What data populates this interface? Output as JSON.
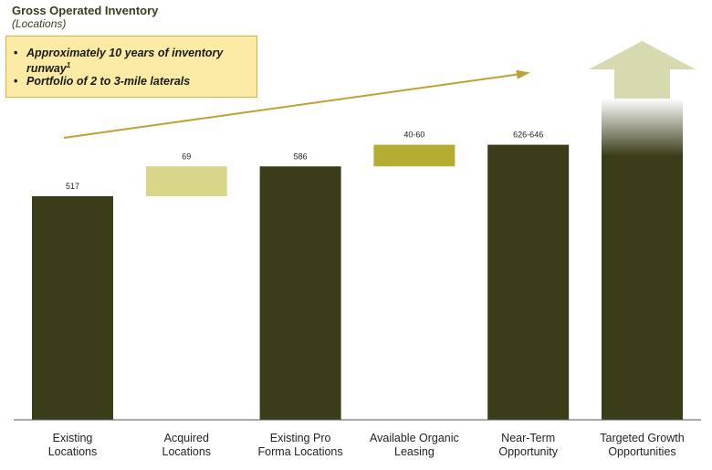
{
  "header": {
    "title": "Gross Operated Inventory",
    "subtitle": "(Locations)"
  },
  "callout": {
    "bullets": [
      {
        "text": "Approximately 10 years of inventory runway",
        "superscript": "1"
      },
      {
        "text": "Portfolio of 2 to 3-mile laterals",
        "superscript": ""
      }
    ]
  },
  "colors": {
    "dark_olive": "#3b3d19",
    "light_olive": "#d9d68a",
    "mid_olive": "#b5ac34",
    "arrow_light": "#d9d9b0",
    "trend_line": "#bfa133",
    "axis": "#555555"
  },
  "chart_data": {
    "type": "bar",
    "subtype": "waterfall",
    "categories": [
      "Existing Locations",
      "Acquired Locations",
      "Existing Pro Forma Locations",
      "Available Organic Leasing",
      "Near-Term Opportunity",
      "Targeted Growth Opportunities"
    ],
    "category_lines": [
      [
        "Existing",
        "Locations"
      ],
      [
        "Acquired",
        "Locations"
      ],
      [
        "Existing Pro",
        "Forma Locations"
      ],
      [
        "Available Organic",
        "Leasing"
      ],
      [
        "Near-Term",
        "Opportunity"
      ],
      [
        "Targeted Growth",
        "Opportunities"
      ]
    ],
    "bars": [
      {
        "kind": "total",
        "start": 0,
        "end": 517,
        "label": "517"
      },
      {
        "kind": "increment",
        "start": 517,
        "end": 586,
        "label": "69"
      },
      {
        "kind": "total",
        "start": 0,
        "end": 586,
        "label": "586"
      },
      {
        "kind": "increment",
        "start": 586,
        "end": 636,
        "label": "40-60"
      },
      {
        "kind": "total",
        "start": 0,
        "end": 636,
        "label": "626-646"
      },
      {
        "kind": "open_ended_growth",
        "start": 0,
        "end": null,
        "label": ""
      }
    ],
    "y_axis_visible": false,
    "grid": false,
    "legend": "none",
    "trend_arrow": "upward from Existing Locations toward Targeted Growth Opportunities"
  }
}
